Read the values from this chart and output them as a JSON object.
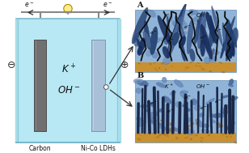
{
  "bg_color": "#ffffff",
  "solution_color": "#b8e8f4",
  "beaker_edge": "#7ab8cc",
  "electrode_left_color": "#707070",
  "electrode_right_color": "#a8c0d8",
  "wire_color": "#888888",
  "bulb_color": "#ffee88",
  "text_color": "#111111",
  "panel_bg": "#88aad0",
  "substrate_color": "#c89030",
  "ldh_dark1": "#2a4878",
  "ldh_dark2": "#1a3060",
  "ldh_mid": "#4a6898",
  "ldh_light": "#6888b8",
  "arrow_color": "#333333",
  "label_A": "A",
  "label_B": "B"
}
